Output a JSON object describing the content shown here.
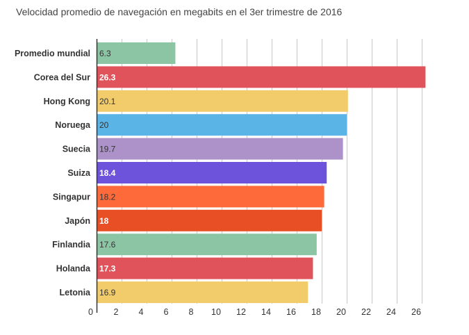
{
  "chart_data": {
    "type": "bar",
    "orientation": "horizontal",
    "title": "Velocidad promedio de navegación en megabits en el 3er trimestre de 2016",
    "xlabel": "",
    "ylabel": "",
    "xlim": [
      0,
      26.8
    ],
    "grid": true,
    "categories": [
      "Promedio mundial",
      "Corea del Sur",
      "Hong Kong",
      "Noruega",
      "Suecia",
      "Suiza",
      "Singapur",
      "Japón",
      "Finlandia",
      "Holanda",
      "Letonia"
    ],
    "values": [
      6.3,
      26.3,
      20.1,
      20,
      19.7,
      18.4,
      18.2,
      18,
      17.6,
      17.3,
      16.9
    ],
    "value_labels": [
      "6.3",
      "26.3",
      "20.1",
      "20",
      "19.7",
      "18.4",
      "18.2",
      "18",
      "17.6",
      "17.3",
      "16.9"
    ],
    "colors": [
      "#8cc5a4",
      "#e0535b",
      "#f2cb6b",
      "#5ab4e6",
      "#ad92c9",
      "#6d53dc",
      "#fe6a3a",
      "#e84f24",
      "#8cc5a4",
      "#e0535b",
      "#f2cb6b"
    ],
    "label_colors": [
      "#333333",
      "#ffffff",
      "#333333",
      "#333333",
      "#333333",
      "#ffffff",
      "#333333",
      "#ffffff",
      "#333333",
      "#ffffff",
      "#333333"
    ],
    "label_bold": [
      false,
      true,
      false,
      false,
      false,
      true,
      false,
      true,
      false,
      true,
      false
    ],
    "x_ticks": [
      0,
      2,
      4,
      6,
      8,
      10,
      12,
      14,
      16,
      18,
      20,
      22,
      24,
      26
    ]
  }
}
